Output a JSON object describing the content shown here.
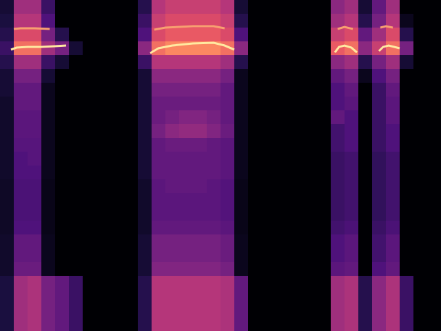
{
  "chart_data": {
    "type": "heatmap",
    "xlim": [
      0,
      32
    ],
    "ylim": [
      0,
      24
    ],
    "tick_labels": false,
    "color_range": [
      0,
      1
    ],
    "cells": [
      [
        0.1,
        0.45,
        0.45,
        0.2,
        0,
        0,
        0,
        0,
        0,
        0,
        0.15,
        0.5,
        0.55,
        0.55,
        0.55,
        0.55,
        0.5,
        0.1,
        0,
        0,
        0,
        0,
        0,
        0,
        0.4,
        0.45,
        0.1,
        0.3,
        0.45,
        0,
        0,
        0
      ],
      [
        0.12,
        0.5,
        0.5,
        0.25,
        0,
        0,
        0,
        0,
        0,
        0,
        0.2,
        0.55,
        0.6,
        0.6,
        0.6,
        0.6,
        0.55,
        0.15,
        0,
        0,
        0,
        0,
        0,
        0,
        0.45,
        0.5,
        0.15,
        0.35,
        0.5,
        0.05,
        0,
        0
      ],
      [
        0.15,
        0.6,
        0.6,
        0.35,
        0.15,
        0,
        0,
        0,
        0,
        0,
        0.25,
        0.6,
        0.65,
        0.65,
        0.65,
        0.65,
        0.6,
        0.25,
        0,
        0,
        0,
        0,
        0,
        0,
        0.55,
        0.6,
        0.3,
        0.45,
        0.6,
        0.15,
        0,
        0
      ],
      [
        0.2,
        0.7,
        0.7,
        0.45,
        0.35,
        0.1,
        0,
        0,
        0,
        0,
        0.4,
        0.7,
        0.75,
        0.75,
        0.75,
        0.75,
        0.7,
        0.4,
        0,
        0,
        0,
        0,
        0,
        0,
        0.65,
        0.7,
        0.4,
        0.55,
        0.7,
        0.35,
        0,
        0
      ],
      [
        0.15,
        0.45,
        0.45,
        0.2,
        0.1,
        0,
        0,
        0,
        0,
        0,
        0.2,
        0.5,
        0.5,
        0.5,
        0.5,
        0.5,
        0.45,
        0.15,
        0,
        0,
        0,
        0,
        0,
        0,
        0.4,
        0.45,
        0.15,
        0.35,
        0.45,
        0.1,
        0,
        0
      ],
      [
        0.1,
        0.35,
        0.35,
        0.1,
        0,
        0,
        0,
        0,
        0,
        0,
        0.1,
        0.4,
        0.4,
        0.4,
        0.4,
        0.4,
        0.35,
        0.05,
        0,
        0,
        0,
        0,
        0,
        0,
        0.3,
        0.35,
        0.05,
        0.25,
        0.35,
        0,
        0,
        0
      ],
      [
        0.1,
        0.3,
        0.3,
        0.05,
        0,
        0,
        0,
        0,
        0,
        0,
        0.1,
        0.35,
        0.35,
        0.35,
        0.35,
        0.35,
        0.3,
        0.05,
        0,
        0,
        0,
        0,
        0,
        0,
        0.25,
        0.3,
        0,
        0.2,
        0.3,
        0,
        0,
        0
      ],
      [
        0.08,
        0.3,
        0.3,
        0.05,
        0,
        0,
        0,
        0,
        0,
        0,
        0.1,
        0.32,
        0.32,
        0.32,
        0.32,
        0.32,
        0.3,
        0.05,
        0,
        0,
        0,
        0,
        0,
        0,
        0.25,
        0.28,
        0,
        0.2,
        0.28,
        0,
        0,
        0
      ],
      [
        0.08,
        0.28,
        0.28,
        0.05,
        0,
        0,
        0,
        0,
        0,
        0,
        0.1,
        0.32,
        0.35,
        0.38,
        0.38,
        0.35,
        0.3,
        0.05,
        0,
        0,
        0,
        0,
        0,
        0,
        0.3,
        0.25,
        0,
        0.2,
        0.28,
        0,
        0,
        0
      ],
      [
        0.08,
        0.28,
        0.28,
        0.05,
        0,
        0,
        0,
        0,
        0,
        0,
        0.1,
        0.35,
        0.4,
        0.42,
        0.42,
        0.38,
        0.32,
        0.05,
        0,
        0,
        0,
        0,
        0,
        0,
        0.22,
        0.25,
        0,
        0.2,
        0.25,
        0,
        0,
        0
      ],
      [
        0.08,
        0.27,
        0.27,
        0.05,
        0,
        0,
        0,
        0,
        0,
        0,
        0.1,
        0.3,
        0.32,
        0.32,
        0.32,
        0.3,
        0.28,
        0.05,
        0,
        0,
        0,
        0,
        0,
        0,
        0.22,
        0.25,
        0,
        0.2,
        0.25,
        0,
        0,
        0
      ],
      [
        0.08,
        0.25,
        0.27,
        0.05,
        0,
        0,
        0,
        0,
        0,
        0,
        0.1,
        0.3,
        0.3,
        0.3,
        0.3,
        0.3,
        0.28,
        0.05,
        0,
        0,
        0,
        0,
        0,
        0,
        0.2,
        0.22,
        0,
        0.18,
        0.22,
        0,
        0,
        0
      ],
      [
        0.08,
        0.25,
        0.25,
        0.05,
        0,
        0,
        0,
        0,
        0,
        0,
        0.1,
        0.3,
        0.3,
        0.3,
        0.3,
        0.3,
        0.28,
        0.05,
        0,
        0,
        0,
        0,
        0,
        0,
        0.2,
        0.22,
        0,
        0.18,
        0.22,
        0,
        0,
        0
      ],
      [
        0.07,
        0.24,
        0.24,
        0.04,
        0,
        0,
        0,
        0,
        0,
        0,
        0.08,
        0.28,
        0.3,
        0.3,
        0.3,
        0.28,
        0.26,
        0.04,
        0,
        0,
        0,
        0,
        0,
        0,
        0.2,
        0.22,
        0,
        0.18,
        0.22,
        0,
        0,
        0
      ],
      [
        0.07,
        0.24,
        0.24,
        0.04,
        0,
        0,
        0,
        0,
        0,
        0,
        0.08,
        0.28,
        0.28,
        0.28,
        0.28,
        0.28,
        0.26,
        0.04,
        0,
        0,
        0,
        0,
        0,
        0,
        0.2,
        0.22,
        0,
        0.18,
        0.22,
        0,
        0,
        0
      ],
      [
        0.07,
        0.24,
        0.24,
        0.04,
        0,
        0,
        0,
        0,
        0,
        0,
        0.08,
        0.28,
        0.28,
        0.28,
        0.28,
        0.28,
        0.26,
        0.04,
        0,
        0,
        0,
        0,
        0,
        0,
        0.2,
        0.22,
        0,
        0.18,
        0.22,
        0,
        0,
        0
      ],
      [
        0.07,
        0.25,
        0.25,
        0.04,
        0,
        0,
        0,
        0,
        0,
        0,
        0.08,
        0.3,
        0.3,
        0.3,
        0.3,
        0.3,
        0.28,
        0.04,
        0,
        0,
        0,
        0,
        0,
        0,
        0.22,
        0.24,
        0,
        0.2,
        0.24,
        0,
        0,
        0
      ],
      [
        0.08,
        0.3,
        0.3,
        0.05,
        0,
        0,
        0,
        0,
        0,
        0,
        0.1,
        0.35,
        0.35,
        0.35,
        0.35,
        0.35,
        0.32,
        0.05,
        0,
        0,
        0,
        0,
        0,
        0,
        0.25,
        0.28,
        0,
        0.22,
        0.28,
        0,
        0,
        0
      ],
      [
        0.08,
        0.3,
        0.3,
        0.05,
        0,
        0,
        0,
        0,
        0,
        0,
        0.1,
        0.35,
        0.35,
        0.35,
        0.35,
        0.35,
        0.32,
        0.05,
        0,
        0,
        0,
        0,
        0,
        0,
        0.25,
        0.28,
        0,
        0.22,
        0.28,
        0,
        0,
        0
      ],
      [
        0.08,
        0.32,
        0.32,
        0.05,
        0,
        0,
        0,
        0,
        0,
        0,
        0.1,
        0.38,
        0.38,
        0.38,
        0.38,
        0.38,
        0.35,
        0.05,
        0,
        0,
        0,
        0,
        0,
        0,
        0.28,
        0.3,
        0,
        0.25,
        0.3,
        0,
        0,
        0
      ],
      [
        0.12,
        0.45,
        0.48,
        0.35,
        0.3,
        0.2,
        0,
        0,
        0,
        0,
        0.15,
        0.5,
        0.5,
        0.5,
        0.5,
        0.5,
        0.48,
        0.3,
        0,
        0,
        0,
        0,
        0,
        0,
        0.45,
        0.48,
        0.15,
        0.4,
        0.48,
        0.2,
        0,
        0
      ],
      [
        0.12,
        0.45,
        0.48,
        0.35,
        0.3,
        0.2,
        0,
        0,
        0,
        0,
        0.15,
        0.5,
        0.5,
        0.5,
        0.5,
        0.5,
        0.48,
        0.3,
        0,
        0,
        0,
        0,
        0,
        0,
        0.45,
        0.48,
        0.15,
        0.4,
        0.48,
        0.2,
        0,
        0
      ],
      [
        0.12,
        0.45,
        0.48,
        0.35,
        0.3,
        0.2,
        0,
        0,
        0,
        0,
        0.15,
        0.5,
        0.5,
        0.5,
        0.5,
        0.5,
        0.48,
        0.3,
        0,
        0,
        0,
        0,
        0,
        0,
        0.45,
        0.48,
        0.15,
        0.4,
        0.48,
        0.2,
        0,
        0
      ],
      [
        0.12,
        0.45,
        0.48,
        0.35,
        0.3,
        0.2,
        0,
        0,
        0,
        0,
        0.15,
        0.5,
        0.5,
        0.5,
        0.5,
        0.5,
        0.48,
        0.3,
        0,
        0,
        0,
        0,
        0,
        0,
        0.45,
        0.48,
        0.15,
        0.4,
        0.48,
        0.2,
        0,
        0
      ]
    ],
    "tracks": [
      {
        "color": "#ffe9a0",
        "points": [
          [
            0.8,
            3.6
          ],
          [
            1.2,
            3.45
          ],
          [
            2,
            3.4
          ],
          [
            3,
            3.4
          ],
          [
            4,
            3.35
          ],
          [
            4.8,
            3.3
          ]
        ]
      },
      {
        "color": "#f7a070",
        "points": [
          [
            1,
            2.1
          ],
          [
            1.5,
            2.05
          ],
          [
            2.5,
            2.05
          ],
          [
            3.6,
            2.1
          ]
        ]
      },
      {
        "color": "#ffe9a0",
        "points": [
          [
            10.9,
            3.85
          ],
          [
            11.5,
            3.5
          ],
          [
            12.5,
            3.3
          ],
          [
            14,
            3.15
          ],
          [
            15.5,
            3.1
          ],
          [
            16.3,
            3.3
          ],
          [
            17,
            3.6
          ]
        ]
      },
      {
        "color": "#f7a070",
        "points": [
          [
            11.2,
            2.15
          ],
          [
            12,
            2
          ],
          [
            14,
            1.9
          ],
          [
            15.5,
            1.9
          ],
          [
            16.3,
            2.05
          ]
        ]
      },
      {
        "color": "#ffe9a0",
        "points": [
          [
            24.3,
            3.8
          ],
          [
            24.6,
            3.4
          ],
          [
            25,
            3.3
          ],
          [
            25.5,
            3.45
          ],
          [
            25.9,
            3.8
          ]
        ]
      },
      {
        "color": "#f7a070",
        "points": [
          [
            24.5,
            2.1
          ],
          [
            25,
            1.95
          ],
          [
            25.6,
            2.1
          ]
        ]
      },
      {
        "color": "#ffe9a0",
        "points": [
          [
            27.5,
            3.7
          ],
          [
            27.8,
            3.4
          ],
          [
            28.2,
            3.3
          ],
          [
            28.6,
            3.4
          ],
          [
            29,
            3.5
          ]
        ]
      },
      {
        "color": "#f7a070",
        "points": [
          [
            27.6,
            2
          ],
          [
            28,
            1.9
          ],
          [
            28.5,
            2
          ]
        ]
      }
    ]
  }
}
